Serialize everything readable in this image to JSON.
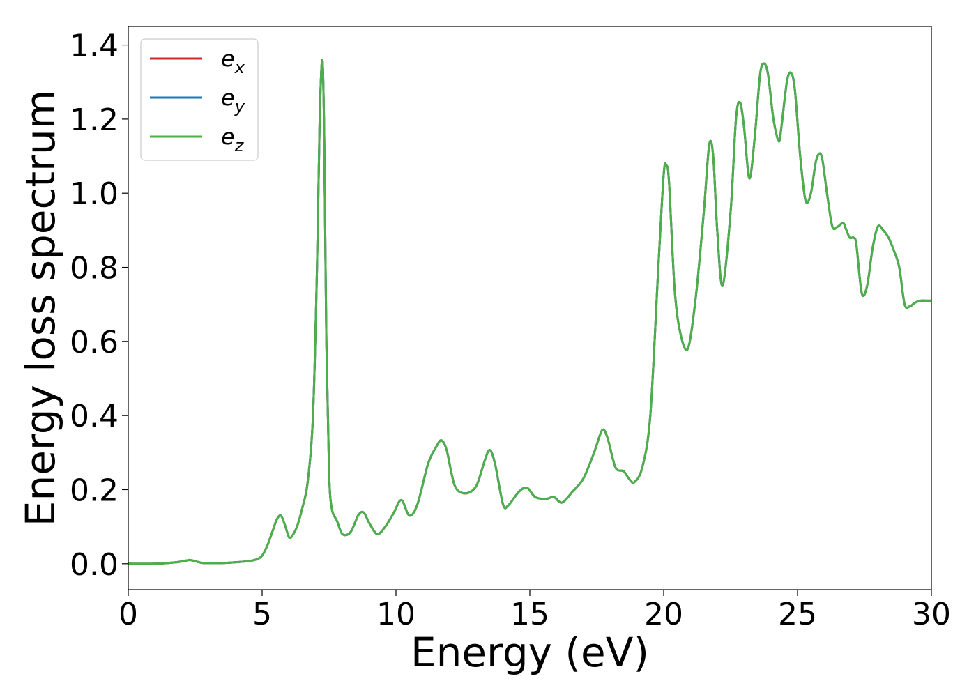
{
  "chart_data": {
    "type": "line",
    "xlabel": "Energy (eV)",
    "ylabel": "Energy loss spectrum",
    "xlim": [
      0,
      30
    ],
    "ylim": [
      -0.07,
      1.45
    ],
    "xticks": [
      0,
      5,
      10,
      15,
      20,
      25,
      30
    ],
    "yticks": [
      0.0,
      0.2,
      0.4,
      0.6,
      0.8,
      1.0,
      1.2,
      1.4
    ],
    "xtick_labels": [
      "0",
      "5",
      "10",
      "15",
      "20",
      "25",
      "30"
    ],
    "ytick_labels": [
      "0.0",
      "0.2",
      "0.4",
      "0.6",
      "0.8",
      "1.0",
      "1.2",
      "1.4"
    ],
    "grid": false,
    "legend_position": "top-left",
    "x": [
      0,
      1,
      1.8,
      2.2,
      2.3,
      2.5,
      2.8,
      3.5,
      4.0,
      4.5,
      4.8,
      5.0,
      5.2,
      5.4,
      5.55,
      5.7,
      5.85,
      6.0,
      6.1,
      6.3,
      6.5,
      6.7,
      6.9,
      7.05,
      7.15,
      7.25,
      7.32,
      7.4,
      7.5,
      7.6,
      7.8,
      8.0,
      8.3,
      8.6,
      8.8,
      9.0,
      9.3,
      9.6,
      9.9,
      10.2,
      10.5,
      10.8,
      11.2,
      11.5,
      11.7,
      11.9,
      12.2,
      12.6,
      13.0,
      13.3,
      13.5,
      13.7,
      14.0,
      14.2,
      14.6,
      14.9,
      15.2,
      15.6,
      15.9,
      16.2,
      16.6,
      17.0,
      17.4,
      17.7,
      17.9,
      18.2,
      18.5,
      18.7,
      18.9,
      19.2,
      19.5,
      19.8,
      20.0,
      20.1,
      20.2,
      20.4,
      20.6,
      20.9,
      21.2,
      21.5,
      21.7,
      21.85,
      22.0,
      22.2,
      22.5,
      22.7,
      22.85,
      23.0,
      23.2,
      23.4,
      23.6,
      23.75,
      23.9,
      24.1,
      24.3,
      24.4,
      24.6,
      24.75,
      24.9,
      25.1,
      25.3,
      25.5,
      25.7,
      25.9,
      26.1,
      26.3,
      26.5,
      26.7,
      26.8,
      26.95,
      27.1,
      27.2,
      27.4,
      27.6,
      27.8,
      28.0,
      28.2,
      28.4,
      28.6,
      28.8,
      29.0,
      29.2,
      29.4,
      29.6,
      29.8,
      30.0
    ],
    "series": [
      {
        "name": "e_x",
        "color": "#d62728",
        "values": [
          0,
          0,
          0.004,
          0.009,
          0.01,
          0.007,
          0.002,
          0.002,
          0.004,
          0.007,
          0.012,
          0.022,
          0.05,
          0.09,
          0.12,
          0.13,
          0.105,
          0.072,
          0.073,
          0.1,
          0.15,
          0.22,
          0.4,
          0.8,
          1.2,
          1.36,
          1.15,
          0.6,
          0.25,
          0.15,
          0.115,
          0.08,
          0.085,
          0.132,
          0.138,
          0.11,
          0.08,
          0.1,
          0.135,
          0.172,
          0.13,
          0.16,
          0.27,
          0.315,
          0.333,
          0.305,
          0.21,
          0.19,
          0.21,
          0.275,
          0.307,
          0.27,
          0.16,
          0.158,
          0.195,
          0.205,
          0.18,
          0.175,
          0.18,
          0.165,
          0.195,
          0.23,
          0.3,
          0.36,
          0.34,
          0.26,
          0.25,
          0.23,
          0.22,
          0.26,
          0.4,
          0.8,
          1.05,
          1.075,
          1.03,
          0.75,
          0.63,
          0.58,
          0.72,
          0.95,
          1.13,
          1.1,
          0.9,
          0.75,
          0.95,
          1.2,
          1.245,
          1.18,
          1.04,
          1.15,
          1.32,
          1.35,
          1.32,
          1.2,
          1.14,
          1.18,
          1.3,
          1.325,
          1.28,
          1.1,
          0.98,
          1.0,
          1.09,
          1.1,
          1.0,
          0.91,
          0.91,
          0.92,
          0.905,
          0.88,
          0.88,
          0.86,
          0.73,
          0.75,
          0.85,
          0.91,
          0.9,
          0.88,
          0.845,
          0.8,
          0.7,
          0.695,
          0.705,
          0.71,
          0.71,
          0.71
        ]
      },
      {
        "name": "e_y",
        "color": "#1f77b4",
        "values": [
          0,
          0,
          0.004,
          0.009,
          0.01,
          0.007,
          0.002,
          0.002,
          0.004,
          0.007,
          0.012,
          0.022,
          0.05,
          0.09,
          0.12,
          0.13,
          0.105,
          0.072,
          0.073,
          0.1,
          0.15,
          0.22,
          0.4,
          0.8,
          1.2,
          1.36,
          1.15,
          0.6,
          0.25,
          0.15,
          0.115,
          0.08,
          0.085,
          0.132,
          0.138,
          0.11,
          0.08,
          0.1,
          0.135,
          0.172,
          0.13,
          0.16,
          0.27,
          0.315,
          0.333,
          0.305,
          0.21,
          0.19,
          0.21,
          0.275,
          0.307,
          0.27,
          0.16,
          0.158,
          0.195,
          0.205,
          0.18,
          0.175,
          0.18,
          0.165,
          0.195,
          0.23,
          0.3,
          0.36,
          0.34,
          0.26,
          0.25,
          0.23,
          0.22,
          0.26,
          0.4,
          0.8,
          1.05,
          1.075,
          1.03,
          0.75,
          0.63,
          0.58,
          0.72,
          0.95,
          1.13,
          1.1,
          0.9,
          0.75,
          0.95,
          1.2,
          1.245,
          1.18,
          1.04,
          1.15,
          1.32,
          1.35,
          1.32,
          1.2,
          1.14,
          1.18,
          1.3,
          1.325,
          1.28,
          1.1,
          0.98,
          1.0,
          1.09,
          1.1,
          1.0,
          0.91,
          0.91,
          0.92,
          0.905,
          0.88,
          0.88,
          0.86,
          0.73,
          0.75,
          0.85,
          0.91,
          0.9,
          0.88,
          0.845,
          0.8,
          0.7,
          0.695,
          0.705,
          0.71,
          0.71,
          0.71
        ]
      },
      {
        "name": "e_z",
        "color": "#4daf4a",
        "values": [
          0,
          0,
          0.004,
          0.009,
          0.01,
          0.007,
          0.002,
          0.002,
          0.004,
          0.007,
          0.012,
          0.022,
          0.05,
          0.09,
          0.12,
          0.13,
          0.105,
          0.072,
          0.073,
          0.1,
          0.15,
          0.22,
          0.4,
          0.8,
          1.2,
          1.36,
          1.15,
          0.6,
          0.25,
          0.15,
          0.115,
          0.08,
          0.085,
          0.132,
          0.138,
          0.11,
          0.08,
          0.1,
          0.135,
          0.172,
          0.13,
          0.16,
          0.27,
          0.315,
          0.333,
          0.305,
          0.21,
          0.19,
          0.21,
          0.275,
          0.307,
          0.27,
          0.16,
          0.158,
          0.195,
          0.205,
          0.18,
          0.175,
          0.18,
          0.165,
          0.195,
          0.23,
          0.3,
          0.36,
          0.34,
          0.26,
          0.25,
          0.23,
          0.22,
          0.26,
          0.4,
          0.8,
          1.05,
          1.075,
          1.03,
          0.75,
          0.63,
          0.58,
          0.72,
          0.95,
          1.13,
          1.1,
          0.9,
          0.75,
          0.95,
          1.2,
          1.245,
          1.18,
          1.04,
          1.15,
          1.32,
          1.35,
          1.32,
          1.2,
          1.14,
          1.18,
          1.3,
          1.325,
          1.28,
          1.1,
          0.98,
          1.0,
          1.09,
          1.1,
          1.0,
          0.91,
          0.91,
          0.92,
          0.905,
          0.88,
          0.88,
          0.86,
          0.73,
          0.75,
          0.85,
          0.91,
          0.9,
          0.88,
          0.845,
          0.8,
          0.7,
          0.695,
          0.705,
          0.71,
          0.71,
          0.71
        ]
      }
    ],
    "legend": [
      {
        "base": "e",
        "sub": "x",
        "color": "#d62728"
      },
      {
        "base": "e",
        "sub": "y",
        "color": "#1f77b4"
      },
      {
        "base": "e",
        "sub": "z",
        "color": "#4daf4a"
      }
    ]
  }
}
